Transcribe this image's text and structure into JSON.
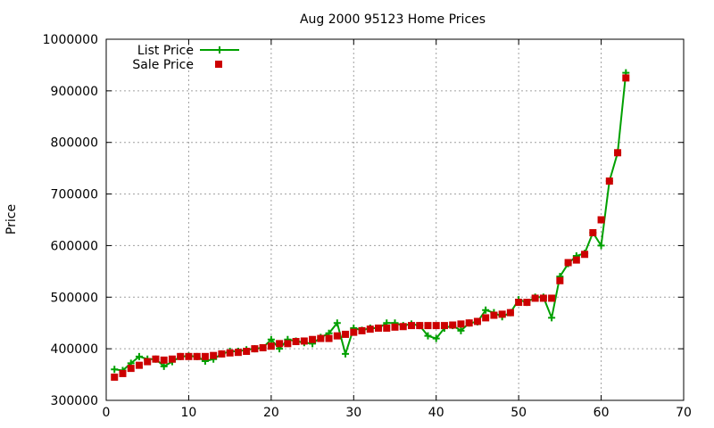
{
  "chart_data": {
    "type": "line",
    "title": "Aug 2000 95123 Home Prices",
    "xlabel": "",
    "ylabel": "Price",
    "xlim": [
      0,
      70
    ],
    "ylim": [
      300000,
      1000000
    ],
    "xticks": [
      0,
      10,
      20,
      30,
      40,
      50,
      60,
      70
    ],
    "yticks": [
      300000,
      400000,
      500000,
      600000,
      700000,
      800000,
      900000,
      1000000
    ],
    "grid": true,
    "legend_position": "top-left",
    "x": [
      1,
      2,
      3,
      4,
      5,
      6,
      7,
      8,
      9,
      10,
      11,
      12,
      13,
      14,
      15,
      16,
      17,
      18,
      19,
      20,
      21,
      22,
      23,
      24,
      25,
      26,
      27,
      28,
      29,
      30,
      31,
      32,
      33,
      34,
      35,
      36,
      37,
      38,
      39,
      40,
      41,
      42,
      43,
      44,
      45,
      46,
      47,
      48,
      49,
      50,
      51,
      52,
      53,
      54,
      55,
      56,
      57,
      58,
      59,
      60,
      61,
      62,
      63
    ],
    "series": [
      {
        "name": "List Price",
        "color": "#00a000",
        "style": "line-plus",
        "values": [
          360000,
          358000,
          372000,
          385000,
          380000,
          380000,
          366000,
          375000,
          385000,
          386000,
          385000,
          376000,
          380000,
          390000,
          395000,
          395000,
          398000,
          400000,
          402000,
          418000,
          400000,
          418000,
          415000,
          412000,
          410000,
          422000,
          430000,
          450000,
          390000,
          440000,
          436000,
          440000,
          440000,
          450000,
          450000,
          445000,
          448000,
          445000,
          425000,
          420000,
          440000,
          445000,
          435000,
          450000,
          452000,
          475000,
          470000,
          462000,
          470000,
          495000,
          490000,
          500000,
          500000,
          460000,
          540000,
          565000,
          580000,
          585000,
          625000,
          600000,
          725000,
          780000,
          935000
        ]
      },
      {
        "name": "Sale Price",
        "color": "#cc0000",
        "style": "square",
        "values": [
          345000,
          352000,
          362000,
          368000,
          375000,
          380000,
          378000,
          380000,
          385000,
          385000,
          385000,
          385000,
          387000,
          390000,
          392000,
          393000,
          395000,
          400000,
          402000,
          405000,
          410000,
          410000,
          414000,
          415000,
          418000,
          420000,
          420000,
          425000,
          428000,
          432000,
          435000,
          438000,
          440000,
          440000,
          442000,
          443000,
          445000,
          445000,
          445000,
          445000,
          445000,
          446000,
          448000,
          450000,
          453000,
          460000,
          465000,
          467000,
          470000,
          490000,
          490000,
          498000,
          498000,
          498000,
          532000,
          567000,
          572000,
          583000,
          625000,
          650000,
          725000,
          780000,
          925000
        ]
      }
    ]
  }
}
